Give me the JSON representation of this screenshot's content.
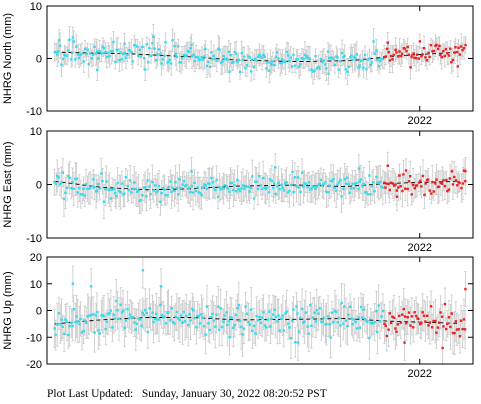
{
  "footer": {
    "label": "Plot Last Updated:",
    "timestamp": "Sunday, January 30, 2022 08:20:52 PST"
  },
  "colors": {
    "points": "#33ddee",
    "recent_points": "#ee2222",
    "error_bars": "#c8c8c8",
    "trend": "#000000",
    "frame": "#000000"
  },
  "chart_data": [
    {
      "type": "scatter",
      "ylabel": "NHRG North (mm)",
      "ylim": [
        -10,
        10
      ],
      "yticks": [
        -10,
        0,
        10
      ],
      "x_tick_label": "2022",
      "xlim": [
        2019.55,
        2022.35
      ],
      "grid": false,
      "trend_line": [
        [
          2019.6,
          1.2
        ],
        [
          2020.1,
          0.9
        ],
        [
          2020.5,
          0.3
        ],
        [
          2020.8,
          -0.3
        ],
        [
          2021.2,
          -0.6
        ],
        [
          2021.55,
          -0.4
        ],
        [
          2021.85,
          0.5
        ],
        [
          2022.25,
          1.2
        ]
      ],
      "recent_start": 2021.76,
      "noise": 1.5,
      "errbar": 1.8,
      "extremes": [
        [
          2019.63,
          3.5
        ],
        [
          2019.72,
          4.0
        ],
        [
          2019.88,
          -2.2
        ],
        [
          2020.06,
          2.8
        ],
        [
          2020.5,
          2.6
        ],
        [
          2020.75,
          -2.5
        ],
        [
          2021.4,
          -2.9
        ],
        [
          2021.79,
          3.0
        ],
        [
          2022.25,
          -1.5
        ]
      ]
    },
    {
      "type": "scatter",
      "ylabel": "NHRG East (mm)",
      "ylim": [
        -10,
        10
      ],
      "yticks": [
        -10,
        0,
        10
      ],
      "x_tick_label": "2022",
      "xlim": [
        2019.55,
        2022.35
      ],
      "grid": false,
      "trend_line": [
        [
          2019.6,
          0.6
        ],
        [
          2019.9,
          -0.5
        ],
        [
          2020.2,
          -1.0
        ],
        [
          2020.5,
          -0.8
        ],
        [
          2020.8,
          -0.3
        ],
        [
          2021.2,
          -0.1
        ],
        [
          2021.5,
          -0.4
        ],
        [
          2021.8,
          0.2
        ],
        [
          2022.25,
          0.6
        ]
      ],
      "recent_start": 2021.76,
      "noise": 1.5,
      "errbar": 2.3,
      "extremes": [
        [
          2020.5,
          2.5
        ],
        [
          2021.05,
          3.2
        ],
        [
          2021.6,
          3.0
        ],
        [
          2021.79,
          3.5
        ],
        [
          2021.85,
          -2.3
        ],
        [
          2022.3,
          2.5
        ]
      ]
    },
    {
      "type": "scatter",
      "ylabel": "NHRG Up (mm)",
      "ylim": [
        -20,
        20
      ],
      "yticks": [
        -20,
        -10,
        0,
        10,
        20
      ],
      "x_tick_label": "2022",
      "xlim": [
        2019.55,
        2022.35
      ],
      "grid": false,
      "trend_line": [
        [
          2019.6,
          -5.0
        ],
        [
          2019.9,
          -3.5
        ],
        [
          2020.2,
          -2.6
        ],
        [
          2020.5,
          -2.6
        ],
        [
          2020.8,
          -3.5
        ],
        [
          2021.2,
          -3.3
        ],
        [
          2021.5,
          -3.0
        ],
        [
          2021.8,
          -4.0
        ],
        [
          2022.25,
          -4.8
        ]
      ],
      "recent_start": 2021.76,
      "noise": 4.0,
      "errbar": 6.0,
      "extremes": [
        [
          2019.72,
          10.0
        ],
        [
          2019.84,
          9.0
        ],
        [
          2020.18,
          15.0
        ],
        [
          2020.3,
          9.0
        ],
        [
          2020.75,
          -10.0
        ],
        [
          2021.2,
          -12.0
        ],
        [
          2021.9,
          -12.0
        ],
        [
          2022.3,
          8.0
        ],
        [
          2022.15,
          -14.0
        ]
      ]
    }
  ]
}
